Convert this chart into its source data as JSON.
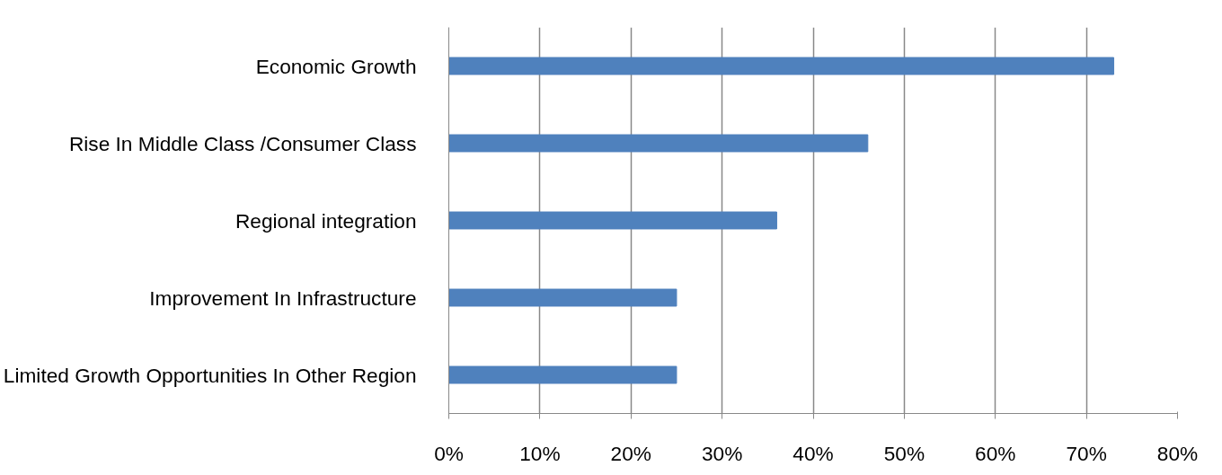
{
  "chart_data": {
    "type": "bar",
    "orientation": "horizontal",
    "categories": [
      "Economic Growth",
      "Rise In Middle Class /Consumer Class",
      "Regional integration",
      "Improvement In Infrastructure",
      "Limited Growth Opportunities In Other Region"
    ],
    "values": [
      73,
      46,
      36,
      25,
      25
    ],
    "color": "#4f81bd",
    "xlim": [
      0,
      80
    ],
    "xticks": [
      {
        "value": 0,
        "label": "0%"
      },
      {
        "value": 10,
        "label": "10%"
      },
      {
        "value": 20,
        "label": "20%"
      },
      {
        "value": 30,
        "label": "30%"
      },
      {
        "value": 40,
        "label": "40%"
      },
      {
        "value": 50,
        "label": "50%"
      },
      {
        "value": 60,
        "label": "60%"
      },
      {
        "value": 70,
        "label": "70%"
      },
      {
        "value": 80,
        "label": "80%"
      }
    ],
    "grid": "x"
  }
}
